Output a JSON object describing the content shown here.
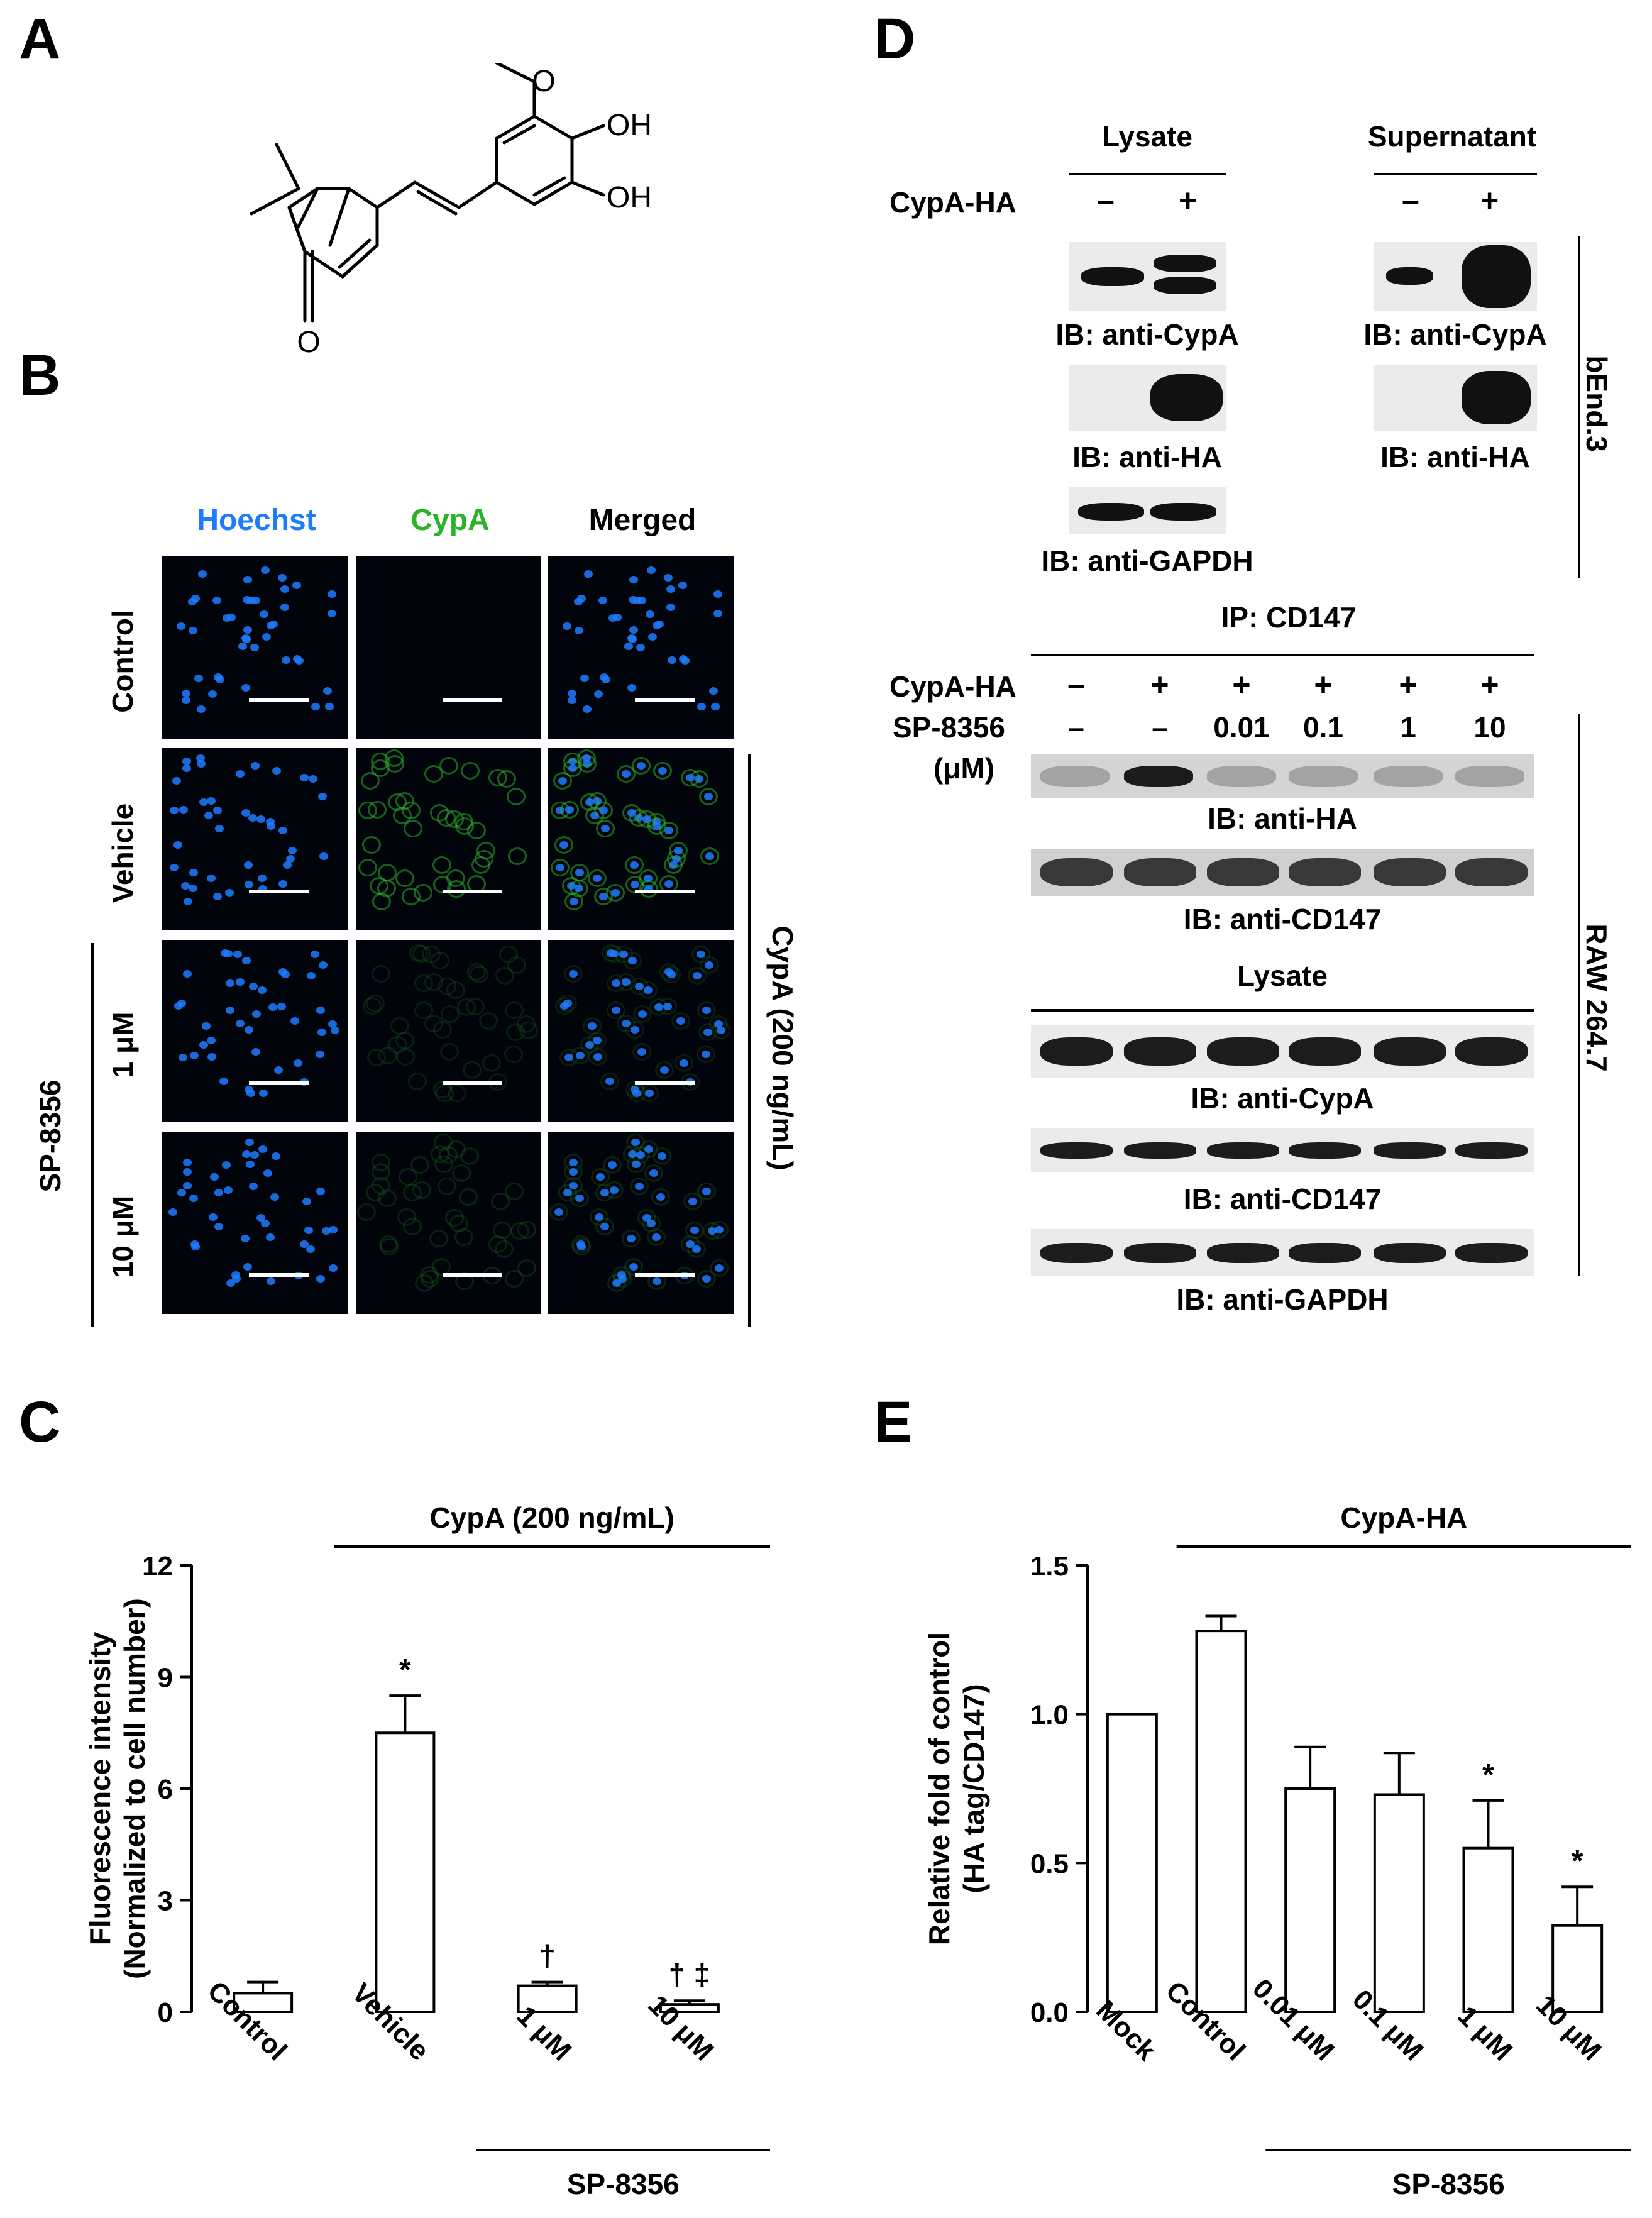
{
  "panels": {
    "a": "A",
    "b": "B",
    "c": "C",
    "d": "D",
    "e": "E"
  },
  "structure": {
    "oh1": "OH",
    "oh2": "OH",
    "o": "O"
  },
  "micro": {
    "col_hoechst": "Hoechst",
    "col_cypa": "CypA",
    "col_merged": "Merged",
    "row_control": "Control",
    "row_vehicle": "Vehicle",
    "row_1um": "1 μM",
    "row_10um": "10 μM",
    "group_sp": "SP-8356",
    "group_cypa": "CypA (200 ng/mL)",
    "colors": {
      "hoechst": "#1e7bff",
      "cypa": "#28b428"
    }
  },
  "blots_top": {
    "lysate": "Lysate",
    "supernatant": "Supernatant",
    "cypa_ha": "CypA-HA",
    "minus": "–",
    "plus": "+",
    "ib_cypa_l": "IB: anti-CypA",
    "ib_cypa_s": "IB: anti-CypA",
    "ib_ha_l": "IB: anti-HA",
    "ib_ha_s": "IB: anti-HA",
    "ib_gapdh": "IB: anti-GAPDH",
    "cell_line": "bEnd.3"
  },
  "blots_bottom": {
    "ip": "IP: CD147",
    "cypa_ha": "CypA-HA",
    "signs": [
      "–",
      "+",
      "+",
      "+",
      "+",
      "+"
    ],
    "sp": "SP-8356",
    "um": "(μM)",
    "doses": [
      "–",
      "–",
      "0.01",
      "0.1",
      "1",
      "10"
    ],
    "ib_ha": "IB: anti-HA",
    "ib_cd147_ip": "IB: anti-CD147",
    "lysate": "Lysate",
    "ib_cypa": "IB: anti-CypA",
    "ib_cd147": "IB: anti-CD147",
    "ib_gapdh": "IB: anti-GAPDH",
    "cell_line": "RAW 264.7"
  },
  "chart_data": [
    {
      "type": "bar",
      "panel": "C",
      "ylabel_line1": "Fluorescence intensity",
      "ylabel_line2": "(Normalized to cell number)",
      "categories": [
        "Control",
        "Vehicle",
        "1 μM",
        "10 μM"
      ],
      "values": [
        0.5,
        7.5,
        0.7,
        0.2
      ],
      "errors": [
        0.3,
        1.0,
        0.1,
        0.1
      ],
      "ylim": [
        0,
        12
      ],
      "yticks": [
        "0",
        "3",
        "6",
        "9",
        "12"
      ],
      "annotations": [
        "",
        "*",
        "†",
        "† ‡"
      ],
      "group_top": "CypA (200 ng/mL)",
      "group_bottom": "SP-8356"
    },
    {
      "type": "bar",
      "panel": "E",
      "ylabel_line1": "Relative fold of control",
      "ylabel_line2": "(HA tag/CD147)",
      "categories": [
        "Mock",
        "Control",
        "0.01 μM",
        "0.1 μM",
        "1 μM",
        "10 μM"
      ],
      "values": [
        1.0,
        1.28,
        0.75,
        0.73,
        0.55,
        0.29
      ],
      "errors": [
        0.0,
        0.05,
        0.14,
        0.14,
        0.16,
        0.13
      ],
      "ylim": [
        0,
        1.5
      ],
      "yticks": [
        "0.0",
        "0.5",
        "1.0",
        "1.5"
      ],
      "annotations": [
        "",
        "",
        "",
        "",
        "*",
        "*"
      ],
      "group_top": "CypA-HA",
      "group_bottom": "SP-8356"
    }
  ]
}
